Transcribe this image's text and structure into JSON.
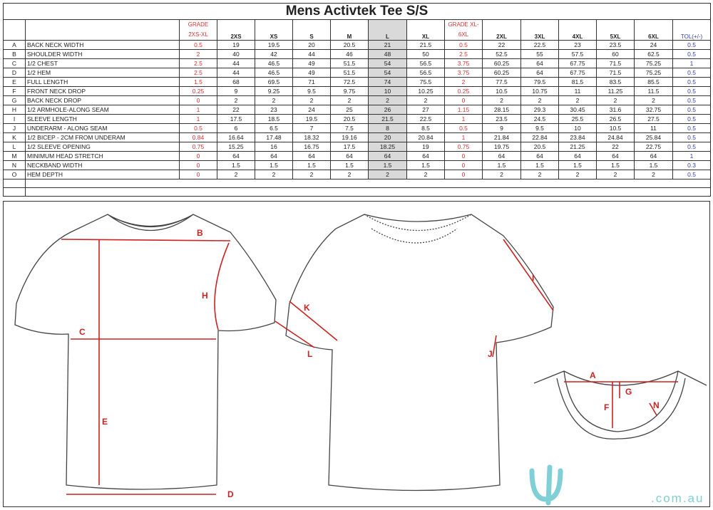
{
  "title": "Mens Activtek Tee S/S",
  "headers": {
    "grade1": "GRADE 2XS-XL",
    "sizes_a": [
      "2XS",
      "XS",
      "S",
      "M",
      "L",
      "XL"
    ],
    "grade2": "GRADE  XL-6XL",
    "sizes_b": [
      "2XL",
      "3XL",
      "4XL",
      "5XL",
      "6XL"
    ],
    "tol": "TOL(+/-)"
  },
  "rows": [
    {
      "code": "A",
      "name": "BACK NECK WIDTH",
      "g1": "0.5",
      "a": [
        "19",
        "19.5",
        "20",
        "20.5",
        "21",
        "21.5"
      ],
      "g2": "0.5",
      "b": [
        "22",
        "22.5",
        "23",
        "23.5",
        "24"
      ],
      "tol": "0.5"
    },
    {
      "code": "B",
      "name": "SHOULDER WIDTH",
      "g1": "2",
      "a": [
        "40",
        "42",
        "44",
        "46",
        "48",
        "50"
      ],
      "g2": "2.5",
      "b": [
        "52.5",
        "55",
        "57.5",
        "60",
        "62.5"
      ],
      "tol": "0.5"
    },
    {
      "code": "C",
      "name": "1/2 CHEST",
      "g1": "2.5",
      "a": [
        "44",
        "46.5",
        "49",
        "51.5",
        "54",
        "56.5"
      ],
      "g2": "3.75",
      "b": [
        "60.25",
        "64",
        "67.75",
        "71.5",
        "75.25"
      ],
      "tol": "1"
    },
    {
      "code": "D",
      "name": "1/2 HEM",
      "g1": "2.5",
      "a": [
        "44",
        "46.5",
        "49",
        "51.5",
        "54",
        "56.5"
      ],
      "g2": "3.75",
      "b": [
        "60.25",
        "64",
        "67.75",
        "71.5",
        "75.25"
      ],
      "tol": "0.5"
    },
    {
      "code": "E",
      "name": "FULL LENGTH",
      "g1": "1.5",
      "a": [
        "68",
        "69.5",
        "71",
        "72.5",
        "74",
        "75.5"
      ],
      "g2": "2",
      "b": [
        "77.5",
        "79.5",
        "81.5",
        "83.5",
        "85.5"
      ],
      "tol": "0.5"
    },
    {
      "code": "F",
      "name": "FRONT NECK DROP",
      "g1": "0.25",
      "a": [
        "9",
        "9.25",
        "9.5",
        "9.75",
        "10",
        "10.25"
      ],
      "g2": "0.25",
      "b": [
        "10.5",
        "10.75",
        "11",
        "11.25",
        "11.5"
      ],
      "tol": "0.5"
    },
    {
      "code": "G",
      "name": "BACK NECK DROP",
      "g1": "0",
      "a": [
        "2",
        "2",
        "2",
        "2",
        "2",
        "2"
      ],
      "g2": "0",
      "b": [
        "2",
        "2",
        "2",
        "2",
        "2"
      ],
      "tol": "0.5"
    },
    {
      "code": "H",
      "name": "1/2 ARMHOLE-ALONG SEAM",
      "g1": "1",
      "a": [
        "22",
        "23",
        "24",
        "25",
        "26",
        "27"
      ],
      "g2": "1.15",
      "b": [
        "28.15",
        "29.3",
        "30.45",
        "31.6",
        "32.75"
      ],
      "tol": "0.5"
    },
    {
      "code": "I",
      "name": "SLEEVE LENGTH",
      "g1": "1",
      "a": [
        "17.5",
        "18.5",
        "19.5",
        "20.5",
        "21.5",
        "22.5"
      ],
      "g2": "1",
      "b": [
        "23.5",
        "24.5",
        "25.5",
        "26.5",
        "27.5"
      ],
      "tol": "0.5"
    },
    {
      "code": "J",
      "name": "UNDERARM - ALONG SEAM",
      "g1": "0.5",
      "a": [
        "6",
        "6.5",
        "7",
        "7.5",
        "8",
        "8.5"
      ],
      "g2": "0.5",
      "b": [
        "9",
        "9.5",
        "10",
        "10.5",
        "11"
      ],
      "tol": "0.5"
    },
    {
      "code": "K",
      "name": "1/2 BICEP - 2CM FROM UNDERAM",
      "g1": "0.84",
      "a": [
        "16.64",
        "17.48",
        "18.32",
        "19.16",
        "20",
        "20.84"
      ],
      "g2": "1",
      "b": [
        "21.84",
        "22.84",
        "23.84",
        "24.84",
        "25.84"
      ],
      "tol": "0.5"
    },
    {
      "code": "L",
      "name": "1/2 SLEEVE OPENING",
      "g1": "0.75",
      "a": [
        "15.25",
        "16",
        "16.75",
        "17.5",
        "18.25",
        "19"
      ],
      "g2": "0.75",
      "b": [
        "19.75",
        "20.5",
        "21.25",
        "22",
        "22.75"
      ],
      "tol": "0.5"
    },
    {
      "code": "M",
      "name": "MINIMUM HEAD STRETCH",
      "g1": "0",
      "a": [
        "64",
        "64",
        "64",
        "64",
        "64",
        "64"
      ],
      "g2": "0",
      "b": [
        "64",
        "64",
        "64",
        "64",
        "64"
      ],
      "tol": "1"
    },
    {
      "code": "N",
      "name": "NECKBAND WIDTH",
      "g1": "0",
      "a": [
        "1.5",
        "1.5",
        "1.5",
        "1.5",
        "1.5",
        "1.5"
      ],
      "g2": "0",
      "b": [
        "1.5",
        "1.5",
        "1.5",
        "1.5",
        "1.5"
      ],
      "tol": "0.3"
    },
    {
      "code": "O",
      "name": "HEM DEPTH",
      "g1": "0",
      "a": [
        "2",
        "2",
        "2",
        "2",
        "2",
        "2"
      ],
      "g2": "0",
      "b": [
        "2",
        "2",
        "2",
        "2",
        "2"
      ],
      "tol": "0.5"
    }
  ],
  "diagram": {
    "labels": {
      "A": "A",
      "B": "B",
      "C": "C",
      "D": "D",
      "E": "E",
      "F": "F",
      "G": "G",
      "H": "H",
      "I": "I",
      "J": "J",
      "K": "K",
      "L": "L",
      "N": "N"
    }
  },
  "watermark": ".com.au",
  "colors": {
    "grade": "#d33333",
    "tolerance": "#3340b0",
    "highlight": "#d9d9d9",
    "measure": "#cc2222",
    "brand": "#7fcfd6"
  }
}
